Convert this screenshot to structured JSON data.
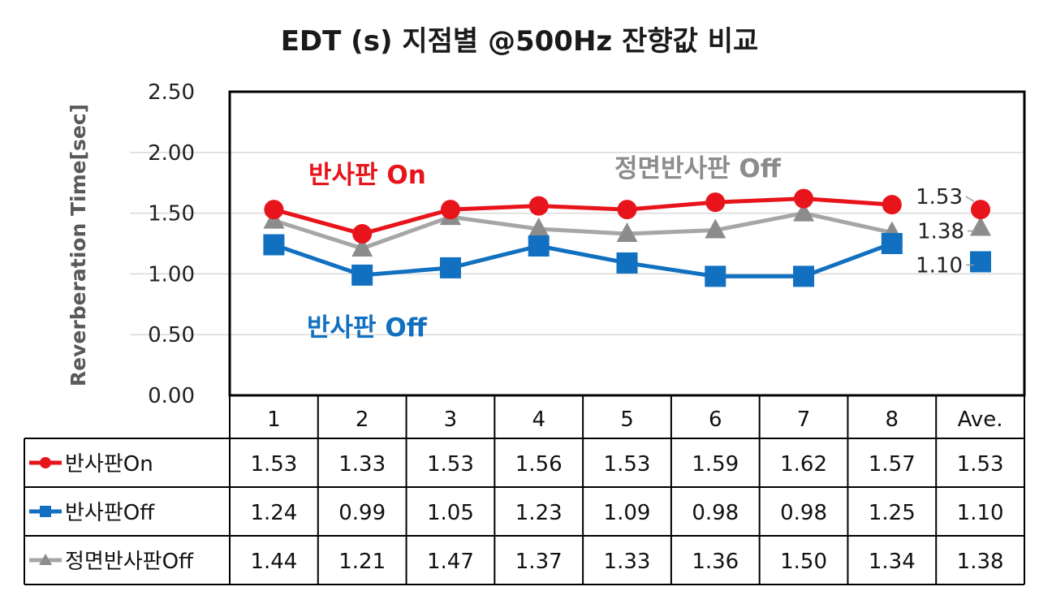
{
  "chart_data": {
    "type": "line",
    "title": "EDT (s) 지점별 @500Hz 잔향값 비교",
    "ylabel": "Reverberation Time[sec]",
    "ylim": [
      0,
      2.5
    ],
    "yticks": [
      "0.00",
      "0.50",
      "1.00",
      "1.50",
      "2.00",
      "2.50"
    ],
    "categories": [
      "1",
      "2",
      "3",
      "4",
      "5",
      "6",
      "7",
      "8",
      "Ave."
    ],
    "grid": true,
    "legend": "data-table",
    "series": [
      {
        "name": "반사판On",
        "color": "#e8141b",
        "marker": "circle",
        "values": [
          1.53,
          1.33,
          1.53,
          1.56,
          1.53,
          1.59,
          1.62,
          1.57,
          1.53
        ],
        "labels": [
          "1.53",
          "1.33",
          "1.53",
          "1.56",
          "1.53",
          "1.59",
          "1.62",
          "1.57",
          "1.53"
        ]
      },
      {
        "name": "반사판Off",
        "color": "#1270c0",
        "marker": "square",
        "values": [
          1.24,
          0.99,
          1.05,
          1.23,
          1.09,
          0.98,
          0.98,
          1.25,
          1.1
        ],
        "labels": [
          "1.24",
          "0.99",
          "1.05",
          "1.23",
          "1.09",
          "0.98",
          "0.98",
          "1.25",
          "1.10"
        ]
      },
      {
        "name": "정면반사판Off",
        "color": "#a6a6a6",
        "markerColor": "#8c8c8c",
        "marker": "triangle",
        "values": [
          1.44,
          1.21,
          1.47,
          1.37,
          1.33,
          1.36,
          1.5,
          1.34,
          1.38
        ],
        "labels": [
          "1.44",
          "1.21",
          "1.47",
          "1.37",
          "1.33",
          "1.36",
          "1.50",
          "1.34",
          "1.38"
        ]
      }
    ],
    "annotations": [
      {
        "text": "반사판 On",
        "color": "#e8141b"
      },
      {
        "text": "정면반사판 Off",
        "color": "#8c8c8c"
      },
      {
        "text": "반사판 Off",
        "color": "#1270c0"
      }
    ],
    "ave_labels": [
      "1.53",
      "1.38",
      "1.10"
    ]
  }
}
